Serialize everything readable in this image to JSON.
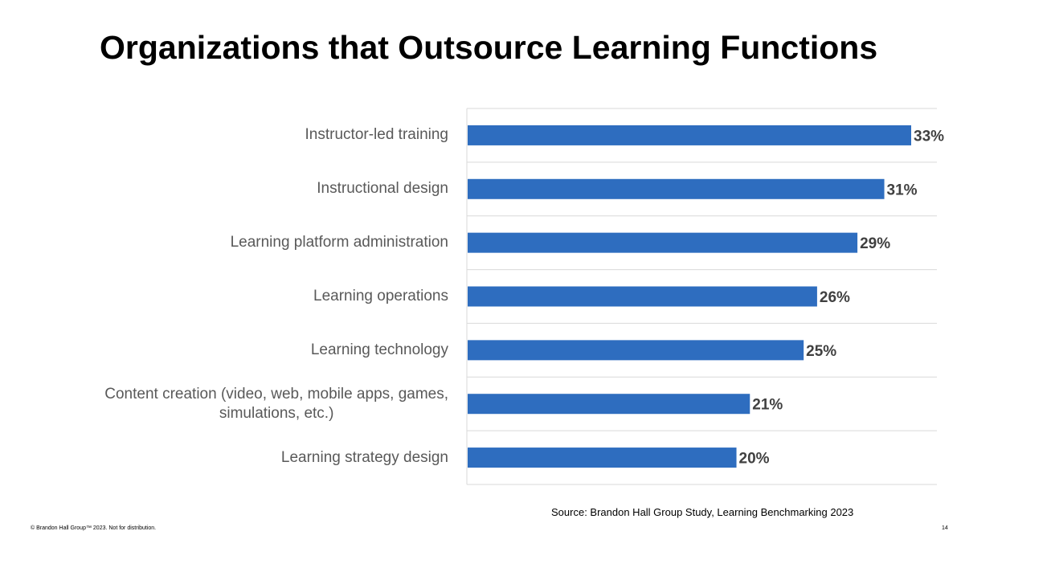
{
  "slide": {
    "title": "Organizations that Outsource Learning Functions",
    "source": "Source: Brandon Hall Group Study, Learning Benchmarking 2023",
    "copyright": "© Brandon Hall Group™ 2023. Not for distribution.",
    "page_number": "14"
  },
  "colors": {
    "bar": "#2e6dbf",
    "grid": "#d9d9d9",
    "label": "#595959",
    "value": "#404040"
  },
  "chart_data": {
    "type": "bar",
    "orientation": "horizontal",
    "categories": [
      "Instructor-led training",
      "Instructional design",
      "Learning platform administration",
      "Learning operations",
      "Learning technology",
      "Content creation (video, web, mobile apps, games,\nsimulations, etc.)",
      "Learning strategy design"
    ],
    "values": [
      33,
      31,
      29,
      26,
      25,
      21,
      20
    ],
    "value_labels": [
      "33%",
      "31%",
      "29%",
      "26%",
      "25%",
      "21%",
      "20%"
    ],
    "unit": "%",
    "xlim": [
      0,
      35
    ],
    "grid": true,
    "legend": "none"
  }
}
